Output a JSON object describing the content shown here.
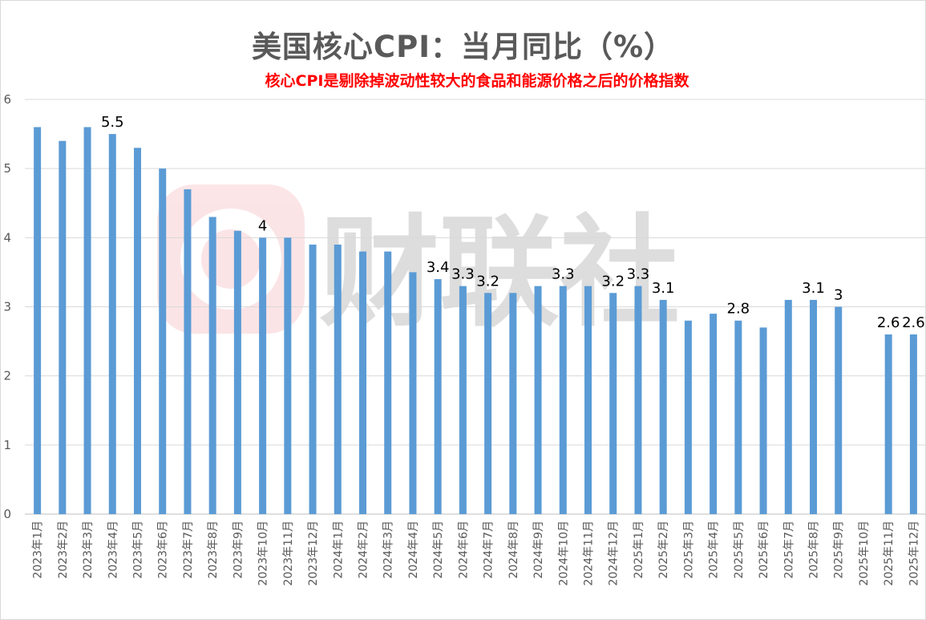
{
  "watermark": {
    "text": "财联社",
    "logo": "cls-logo-icon",
    "color": "#e63946"
  },
  "chart_data": {
    "type": "bar",
    "title": "美国核心CPI：当月同比（%）",
    "subtitle": "核心CPI是剔除掉波动性较大的食品和能源价格之后的价格指数",
    "ylim": [
      0,
      6
    ],
    "yticks": [
      0,
      1,
      2,
      3,
      4,
      5,
      6
    ],
    "grid": true,
    "bar_color": "#5b9bd5",
    "categories": [
      "2023年1月",
      "2023年2月",
      "2023年3月",
      "2023年4月",
      "2023年5月",
      "2023年6月",
      "2023年7月",
      "2023年8月",
      "2023年9月",
      "2023年10月",
      "2023年11月",
      "2023年12月",
      "2024年1月",
      "2024年2月",
      "2024年3月",
      "2024年4月",
      "2024年5月",
      "2024年6月",
      "2024年7月",
      "2024年8月",
      "2024年9月",
      "2024年10月",
      "2024年11月",
      "2024年12月",
      "2025年1月",
      "2025年2月",
      "2025年3月",
      "2025年4月",
      "2025年5月",
      "2025年6月",
      "2025年7月",
      "2025年8月",
      "2025年9月",
      "2025年10月",
      "2025年11月",
      "2025年12月"
    ],
    "values": [
      5.6,
      5.4,
      5.6,
      5.5,
      5.3,
      5.0,
      4.7,
      4.3,
      4.1,
      4.0,
      4.0,
      3.9,
      3.9,
      3.8,
      3.8,
      3.5,
      3.4,
      3.3,
      3.2,
      3.2,
      3.3,
      3.3,
      3.3,
      3.2,
      3.3,
      3.1,
      2.8,
      2.9,
      2.8,
      2.7,
      3.1,
      3.1,
      3.0,
      null,
      2.6,
      2.6
    ],
    "data_labels": [
      {
        "index": 3,
        "text": "5.5"
      },
      {
        "index": 9,
        "text": "4"
      },
      {
        "index": 16,
        "text": "3.4"
      },
      {
        "index": 17,
        "text": "3.3"
      },
      {
        "index": 18,
        "text": "3.2"
      },
      {
        "index": 21,
        "text": "3.3"
      },
      {
        "index": 23,
        "text": "3.2"
      },
      {
        "index": 24,
        "text": "3.3"
      },
      {
        "index": 25,
        "text": "3.1"
      },
      {
        "index": 28,
        "text": "2.8"
      },
      {
        "index": 31,
        "text": "3.1"
      },
      {
        "index": 32,
        "text": "3"
      },
      {
        "index": 34,
        "text": "2.6"
      },
      {
        "index": 35,
        "text": "2.6"
      }
    ]
  }
}
